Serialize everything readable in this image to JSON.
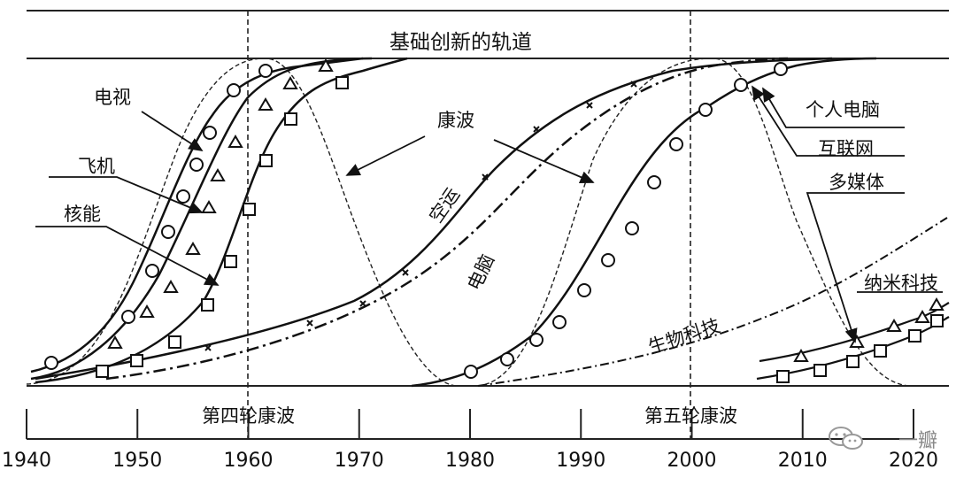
{
  "title": "基础创新的轨道",
  "labels": {
    "tv": "电视",
    "airplane": "飞机",
    "nuclear": "核能",
    "kondratiev_wave": "康波",
    "air_transport": "空运",
    "computer": "电脑",
    "biotech": "生物科技",
    "personal_computer": "个人电脑",
    "internet": "互联网",
    "multimedia": "多媒体",
    "nanotech": "纳米科技"
  },
  "waves": {
    "fourth": "第四轮康波",
    "fifth": "第五轮康波"
  },
  "axis": {
    "years": [
      "1940",
      "1950",
      "1960",
      "1970",
      "1980",
      "1990",
      "2000",
      "2010",
      "2020"
    ]
  },
  "watermark": {
    "name": "一瓣"
  },
  "icons": [
    "wechat-icon"
  ]
}
